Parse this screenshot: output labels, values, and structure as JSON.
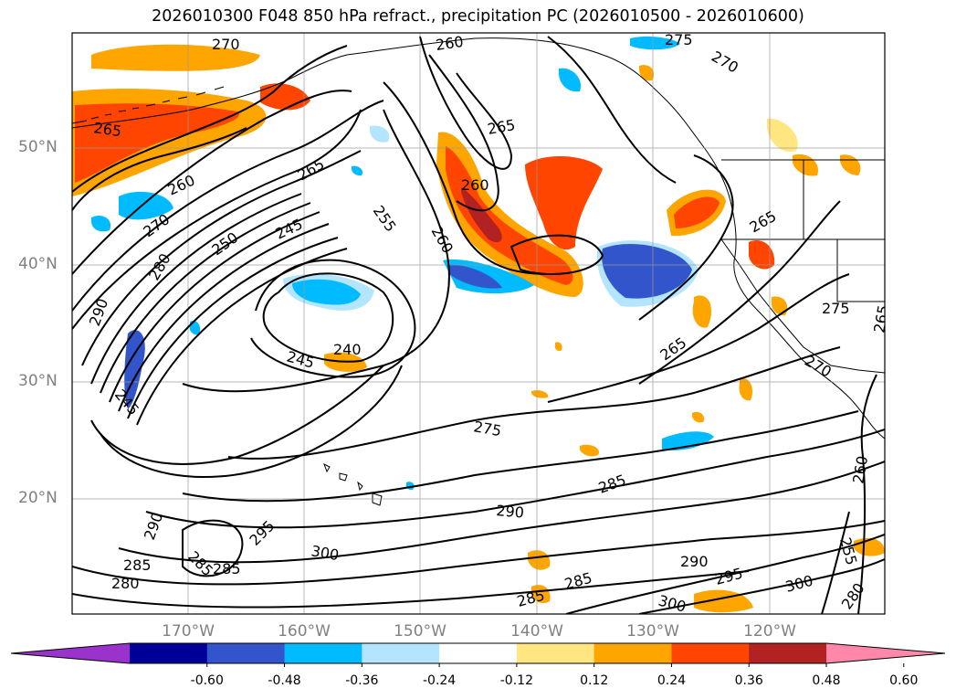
{
  "title": "2026010300 F048 850 hPa refract., precipitation PC (2026010500 - 2026010600)",
  "lat_labels": [
    "50°N",
    "40°N",
    "30°N",
    "20°N"
  ],
  "lon_labels": [
    "170°W",
    "160°W",
    "150°W",
    "140°W",
    "130°W",
    "120°W"
  ],
  "contour_labels": [
    "270",
    "260",
    "275",
    "270",
    "265",
    "265",
    "260",
    "265",
    "260",
    "270",
    "250",
    "245",
    "255",
    "260",
    "280",
    "290",
    "265",
    "275",
    "245",
    "240",
    "265",
    "265",
    "270",
    "245",
    "275",
    "260",
    "285",
    "290",
    "290",
    "295",
    "300",
    "285",
    "280",
    "285",
    "285",
    "290",
    "295",
    "300",
    "280",
    "300",
    "255",
    "285",
    "285"
  ],
  "colorbar": {
    "ticks": [
      "-0.60",
      "-0.48",
      "-0.36",
      "-0.24",
      "-0.12",
      "0.12",
      "0.24",
      "0.36",
      "0.48",
      "0.60"
    ],
    "colors": [
      "#9933cc",
      "#000099",
      "#3355cc",
      "#00bbff",
      "#b3e5ff",
      "#ffffff",
      "#ffe680",
      "#ffa500",
      "#ff4500",
      "#b22222",
      "#ff88aa"
    ]
  }
}
